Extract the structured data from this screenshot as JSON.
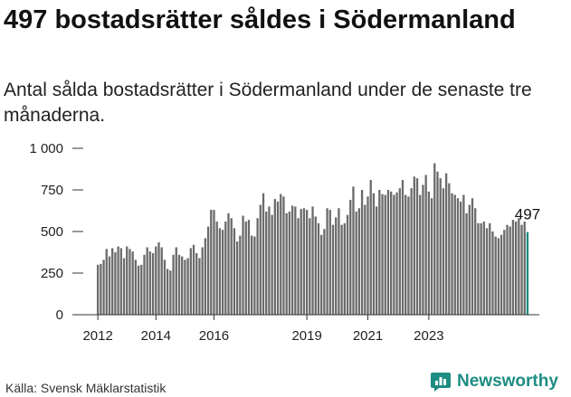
{
  "title": "497 bostadsrätter såldes i Södermanland",
  "subtitle": "Antal sålda bostadsrätter i Södermanland under de senaste tre månaderna.",
  "source": "Källa: Svensk Mäklarstatistik",
  "logo": {
    "text": "Newsworthy",
    "icon": "newsworthy-chart-icon"
  },
  "colors": {
    "bars": "#6b6b6b",
    "highlight": "#1e8c82",
    "axis": "#333333",
    "logo": "#1e8c82"
  },
  "chart_data": {
    "type": "bar",
    "title": "497 bostadsrätter såldes i Södermanland",
    "xlabel": "",
    "ylabel": "",
    "ylim": [
      0,
      1000
    ],
    "yticks": [
      0,
      250,
      500,
      750,
      1000
    ],
    "ytick_labels": [
      "0",
      "250",
      "500",
      "750",
      "1 000"
    ],
    "xtick_labels": [
      "2012",
      "2014",
      "2016",
      "2019",
      "2021",
      "2023"
    ],
    "xtick_index": [
      0,
      20,
      40,
      72,
      93,
      114
    ],
    "grid": false,
    "highlight_label": "497",
    "highlight_value": 497,
    "values": [
      300,
      305,
      330,
      395,
      350,
      400,
      375,
      410,
      400,
      340,
      410,
      395,
      380,
      330,
      295,
      300,
      360,
      405,
      380,
      370,
      410,
      435,
      405,
      330,
      275,
      265,
      360,
      405,
      360,
      350,
      330,
      340,
      400,
      420,
      370,
      340,
      405,
      460,
      530,
      630,
      630,
      560,
      520,
      510,
      560,
      610,
      580,
      520,
      440,
      475,
      595,
      560,
      570,
      475,
      470,
      580,
      660,
      730,
      620,
      650,
      600,
      695,
      680,
      725,
      710,
      610,
      620,
      655,
      650,
      580,
      635,
      640,
      630,
      580,
      650,
      590,
      550,
      480,
      515,
      640,
      630,
      540,
      585,
      640,
      540,
      550,
      600,
      690,
      770,
      620,
      640,
      750,
      660,
      710,
      810,
      730,
      650,
      750,
      725,
      720,
      750,
      740,
      720,
      735,
      760,
      810,
      720,
      710,
      760,
      830,
      820,
      720,
      780,
      840,
      740,
      700,
      910,
      860,
      820,
      760,
      850,
      790,
      730,
      720,
      700,
      680,
      720,
      610,
      660,
      700,
      640,
      550,
      550,
      560,
      520,
      550,
      500,
      470,
      460,
      480,
      510,
      540,
      530,
      570,
      560,
      580,
      540,
      560,
      497
    ]
  }
}
